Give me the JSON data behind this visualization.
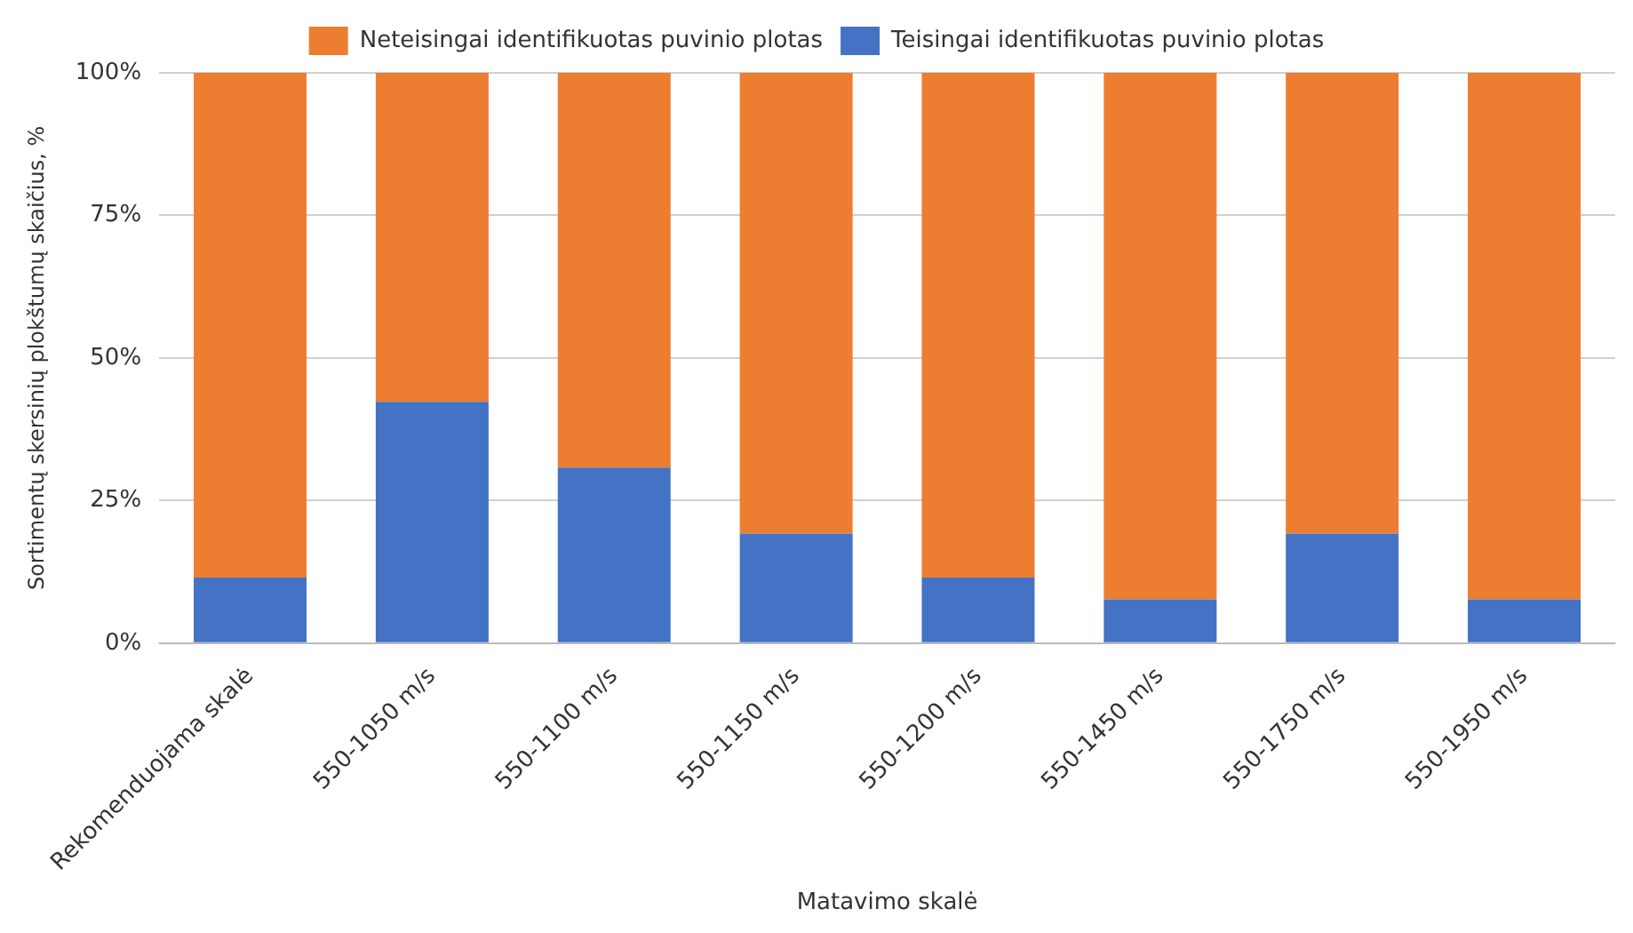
{
  "chart_data": {
    "type": "bar",
    "stacked": true,
    "xlabel": "Matavimo skalė",
    "ylabel": "Sortimentų skersinių plokštumų skaičius, %",
    "categories": [
      "Rekomenduojama skalė",
      "550-1050 m/s",
      "550-1100 m/s",
      "550-1150 m/s",
      "550-1200 m/s",
      "550-1450 m/s",
      "550-1750 m/s",
      "550-1950 m/s"
    ],
    "series": [
      {
        "name": "Teisingai identifikuotas puvinio plotas",
        "color": "#4472c4",
        "values": [
          11.5,
          42.3,
          30.8,
          19.2,
          11.5,
          7.7,
          19.2,
          7.7
        ]
      },
      {
        "name": "Neteisingai identifikuotas puvinio plotas",
        "color": "#ed7d31",
        "values": [
          88.5,
          57.7,
          69.2,
          80.8,
          88.5,
          92.3,
          80.8,
          92.3
        ]
      }
    ],
    "ylim": [
      0,
      100
    ],
    "yticks": [
      {
        "value": 0,
        "label": "0%"
      },
      {
        "value": 25,
        "label": "25%"
      },
      {
        "value": 50,
        "label": "50%"
      },
      {
        "value": 75,
        "label": "75%"
      },
      {
        "value": 100,
        "label": "100%"
      }
    ],
    "grid": "y",
    "legend": "top"
  }
}
